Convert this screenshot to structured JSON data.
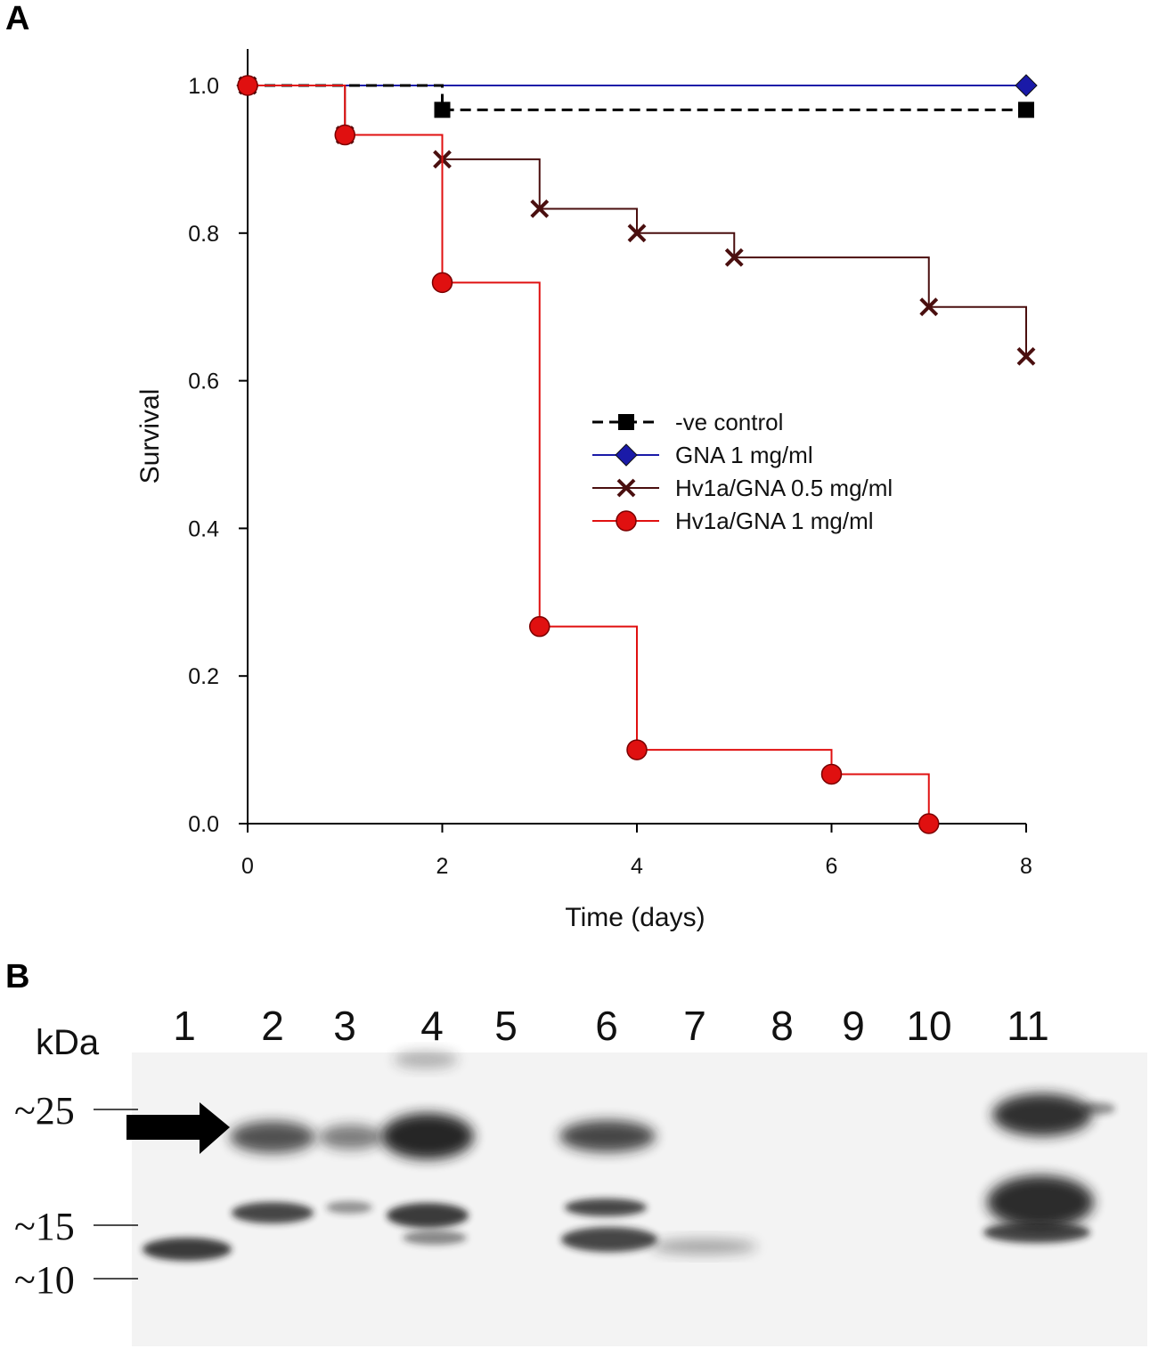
{
  "panels": {
    "a": {
      "letter": "A"
    },
    "b": {
      "letter": "B"
    }
  },
  "chart_data": {
    "type": "line",
    "step": true,
    "xlabel": "Time (days)",
    "ylabel": "Survival",
    "xlim": [
      0,
      8
    ],
    "ylim": [
      0,
      1.0
    ],
    "xticks": [
      0,
      2,
      4,
      6,
      8
    ],
    "yticks": [
      0.0,
      0.2,
      0.4,
      0.6,
      0.8,
      1.0
    ],
    "xtick_labels": [
      "0",
      "2",
      "4",
      "6",
      "8"
    ],
    "ytick_labels": [
      "0.0",
      "0.2",
      "0.4",
      "0.6",
      "0.8",
      "1.0"
    ],
    "grid": false,
    "legend_position": "center-right",
    "series": [
      {
        "name": "-ve control",
        "color": "#000000",
        "marker": "square",
        "dash": true,
        "x": [
          0,
          2,
          8
        ],
        "y": [
          1.0,
          0.967,
          0.967
        ]
      },
      {
        "name": "GNA 1 mg/ml",
        "color": "#1a1aa8",
        "marker": "diamond",
        "dash": false,
        "x": [
          0,
          8
        ],
        "y": [
          1.0,
          1.0
        ]
      },
      {
        "name": "Hv1a/GNA 0.5 mg/ml",
        "color": "#4a0f0f",
        "marker": "x",
        "dash": false,
        "x": [
          0,
          1,
          2,
          3,
          4,
          5,
          7,
          8
        ],
        "y": [
          1.0,
          0.933,
          0.9,
          0.833,
          0.8,
          0.767,
          0.7,
          0.633
        ]
      },
      {
        "name": "Hv1a/GNA 1 mg/ml",
        "color": "#e01010",
        "marker": "circle",
        "dash": false,
        "x": [
          0,
          1,
          2,
          3,
          4,
          6,
          7
        ],
        "y": [
          1.0,
          0.933,
          0.733,
          0.267,
          0.1,
          0.067,
          0.0
        ]
      }
    ]
  },
  "blot": {
    "kda_label": "kDa",
    "lane_labels": [
      "1",
      "2",
      "3",
      "4",
      "5",
      "6",
      "7",
      "8",
      "9",
      "10",
      "11"
    ],
    "markers": [
      "~25",
      "~15",
      "~10"
    ],
    "arrow": "arrow-right-icon"
  }
}
